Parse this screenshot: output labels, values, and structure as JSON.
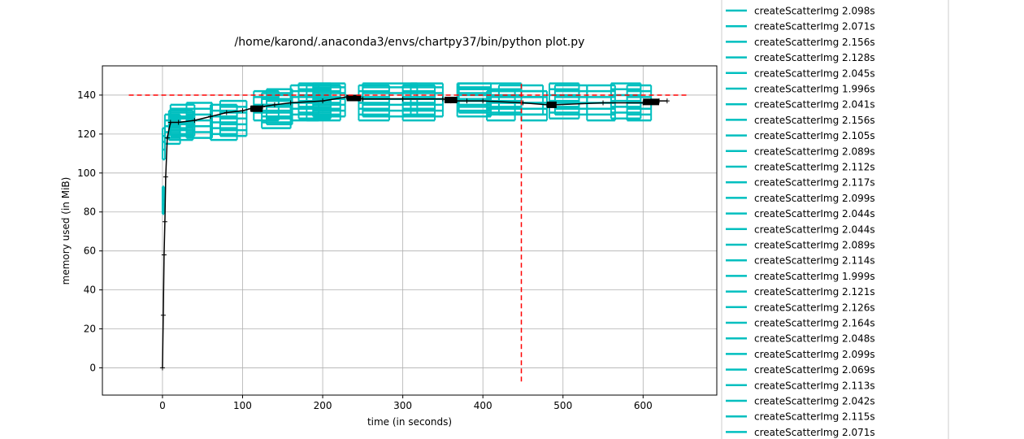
{
  "chart_data": {
    "type": "line",
    "title": "/home/karond/.anaconda3/envs/chartpy37/bin/python plot.py",
    "xlabel": "time (in seconds)",
    "ylabel": "memory used (in MiB)",
    "xlim": [
      -75,
      692
    ],
    "ylim": [
      -14,
      155
    ],
    "x_ticks": [
      0,
      100,
      200,
      300,
      400,
      500,
      600
    ],
    "y_ticks": [
      0,
      20,
      40,
      60,
      80,
      100,
      120,
      140
    ],
    "grid": true,
    "legend_position": "outside-right",
    "colors": {
      "memory": "#000000",
      "functions": "#00bfbf",
      "reference": "#ff0000"
    },
    "memory_series": {
      "x": [
        0,
        1,
        2,
        3,
        4,
        6,
        10,
        20,
        40,
        60,
        80,
        100,
        110,
        125,
        140,
        160,
        200,
        230,
        250,
        300,
        350,
        360,
        380,
        400,
        450,
        480,
        490,
        550,
        600,
        620,
        630
      ],
      "y": [
        0,
        27,
        58,
        75,
        98,
        118,
        126,
        126,
        127,
        129,
        131,
        132,
        133,
        134,
        135,
        136,
        137,
        139,
        138,
        138,
        138,
        137,
        137,
        137,
        136,
        135,
        135,
        136,
        136,
        137,
        137
      ]
    },
    "reference_lines": {
      "h_memory": 140,
      "h_x_range": [
        -42,
        655
      ],
      "v_time": 448,
      "v_y_range": [
        -7,
        146
      ]
    },
    "function_brackets": [
      {
        "t0": 0,
        "t1": 3,
        "mem": [
          107,
          112,
          116,
          119,
          123
        ]
      },
      {
        "t0": 0,
        "t1": 2,
        "mem": [
          79,
          84,
          86,
          93
        ]
      },
      {
        "t0": 3,
        "t1": 22,
        "mem": [
          115,
          118,
          121,
          124,
          127,
          130
        ]
      },
      {
        "t0": 8,
        "t1": 38,
        "mem": [
          117,
          120,
          123,
          126,
          129,
          132
        ]
      },
      {
        "t0": 10,
        "t1": 40,
        "mem": [
          119,
          122,
          125,
          128,
          131,
          133,
          135
        ]
      },
      {
        "t0": 30,
        "t1": 62,
        "mem": [
          118,
          121,
          124,
          127,
          130,
          133,
          136
        ]
      },
      {
        "t0": 60,
        "t1": 93,
        "mem": [
          117,
          120,
          123,
          126,
          129,
          132,
          135
        ]
      },
      {
        "t0": 72,
        "t1": 105,
        "mem": [
          119,
          122,
          125,
          128,
          131,
          134,
          137
        ]
      },
      {
        "t0": 114,
        "t1": 145,
        "mem": [
          127,
          131,
          135,
          139,
          142
        ]
      },
      {
        "t0": 124,
        "t1": 160,
        "mem": [
          123,
          126,
          129,
          132,
          135,
          138,
          141
        ]
      },
      {
        "t0": 130,
        "t1": 162,
        "mem": [
          125,
          128,
          131,
          134,
          137,
          140,
          143
        ]
      },
      {
        "t0": 160,
        "t1": 195,
        "mem": [
          127,
          130,
          133,
          136,
          139,
          142,
          145
        ]
      },
      {
        "t0": 170,
        "t1": 210,
        "mem": [
          128,
          131,
          134,
          137,
          140,
          143,
          146
        ]
      },
      {
        "t0": 180,
        "t1": 222,
        "mem": [
          127,
          130,
          133,
          136,
          139,
          142,
          145
        ]
      },
      {
        "t0": 188,
        "t1": 228,
        "mem": [
          129,
          132,
          135,
          138,
          141,
          144,
          146
        ]
      },
      {
        "t0": 245,
        "t1": 283,
        "mem": [
          127,
          130,
          133,
          136,
          139,
          142,
          145
        ]
      },
      {
        "t0": 250,
        "t1": 318,
        "mem": [
          129,
          132,
          135,
          138,
          141,
          144,
          146
        ]
      },
      {
        "t0": 300,
        "t1": 340,
        "mem": [
          127,
          130,
          133,
          136,
          139,
          142,
          145
        ]
      },
      {
        "t0": 310,
        "t1": 350,
        "mem": [
          129,
          132,
          135,
          138,
          141,
          144,
          146
        ]
      },
      {
        "t0": 368,
        "t1": 410,
        "mem": [
          129,
          132,
          135,
          138,
          141,
          144,
          146
        ]
      },
      {
        "t0": 370,
        "t1": 448,
        "mem": [
          131,
          134,
          137,
          140,
          143,
          146
        ]
      },
      {
        "t0": 405,
        "t1": 440,
        "mem": [
          127,
          130,
          133,
          136,
          139,
          142
        ]
      },
      {
        "t0": 420,
        "t1": 475,
        "mem": [
          130,
          133,
          136,
          139,
          142,
          145
        ]
      },
      {
        "t0": 448,
        "t1": 480,
        "mem": [
          127,
          130,
          133,
          136,
          139,
          142
        ]
      },
      {
        "t0": 483,
        "t1": 520,
        "mem": [
          128,
          131,
          134,
          137,
          140,
          143,
          146
        ]
      },
      {
        "t0": 490,
        "t1": 530,
        "mem": [
          130,
          133,
          136,
          139,
          142,
          145
        ]
      },
      {
        "t0": 530,
        "t1": 565,
        "mem": [
          127,
          130,
          133,
          136,
          139,
          142,
          145
        ]
      },
      {
        "t0": 560,
        "t1": 597,
        "mem": [
          128,
          131,
          134,
          137,
          140,
          143,
          146
        ]
      },
      {
        "t0": 580,
        "t1": 610,
        "mem": [
          127,
          130,
          133,
          136,
          139,
          142,
          145
        ]
      }
    ],
    "legend_entries": [
      "createScatterImg 2.098s",
      "createScatterImg 2.071s",
      "createScatterImg 2.156s",
      "createScatterImg 2.128s",
      "createScatterImg 2.045s",
      "createScatterImg 1.996s",
      "createScatterImg 2.041s",
      "createScatterImg 2.156s",
      "createScatterImg 2.105s",
      "createScatterImg 2.089s",
      "createScatterImg 2.112s",
      "createScatterImg 2.117s",
      "createScatterImg 2.099s",
      "createScatterImg 2.044s",
      "createScatterImg 2.044s",
      "createScatterImg 2.089s",
      "createScatterImg 2.114s",
      "createScatterImg 1.999s",
      "createScatterImg 2.121s",
      "createScatterImg 2.126s",
      "createScatterImg 2.164s",
      "createScatterImg 2.048s",
      "createScatterImg 2.099s",
      "createScatterImg 2.069s",
      "createScatterImg 2.113s",
      "createScatterImg 2.042s",
      "createScatterImg 2.115s",
      "createScatterImg 2.071s"
    ]
  }
}
